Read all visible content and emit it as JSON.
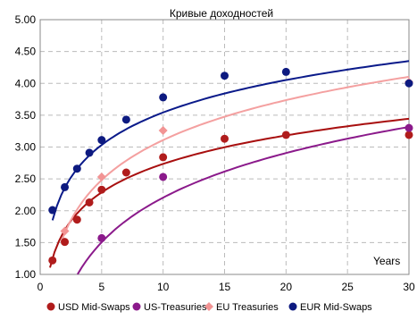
{
  "chart_data": {
    "type": "scatter",
    "title": "Кривые доходностей",
    "xlabel": "Years",
    "ylabel": "",
    "xlim": [
      0,
      30
    ],
    "ylim": [
      1.0,
      5.0
    ],
    "xticks": [
      0,
      5,
      10,
      15,
      20,
      25,
      30
    ],
    "yticks": [
      "1.00",
      "1.50",
      "2.00",
      "2.50",
      "3.00",
      "3.50",
      "4.00",
      "4.50",
      "5.00"
    ],
    "grid": true,
    "legend_position": "bottom",
    "series": [
      {
        "name": "USD Mid-Swaps",
        "color": "#b01c1c",
        "marker": "circle",
        "points": [
          [
            1,
            1.22
          ],
          [
            2,
            1.51
          ],
          [
            3,
            1.86
          ],
          [
            4,
            2.13
          ],
          [
            5,
            2.33
          ],
          [
            7,
            2.6
          ],
          [
            10,
            2.84
          ],
          [
            15,
            3.13
          ],
          [
            20,
            3.19
          ],
          [
            30,
            3.19
          ]
        ],
        "trend": {
          "type": "log",
          "a": 1.25,
          "b": 0.645,
          "x_from": 0.8,
          "x_to": 30
        },
        "trend_color": "#a80f0f"
      },
      {
        "name": "US-Treasuries",
        "color": "#8b1a8b",
        "marker": "circle",
        "points": [
          [
            5,
            1.57
          ],
          [
            10,
            2.53
          ],
          [
            30,
            3.3
          ]
        ],
        "trend": {
          "type": "log",
          "a": -0.12,
          "b": 1.01,
          "x_from": 2.7,
          "x_to": 30
        },
        "trend_color": "#8b1a8b"
      },
      {
        "name": "EU Treasuries",
        "color": "#f29494",
        "marker": "diamond",
        "points": [
          [
            2,
            1.68
          ],
          [
            5,
            2.53
          ],
          [
            10,
            3.26
          ],
          [
            30,
            4.02
          ]
        ],
        "trend": {
          "type": "log",
          "a": 1.025,
          "b": 0.905,
          "x_from": 1.7,
          "x_to": 30
        },
        "trend_color": "#f4a0a0"
      },
      {
        "name": "EUR Mid-Swaps",
        "color": "#0d1a80",
        "marker": "circle",
        "points": [
          [
            1,
            2.01
          ],
          [
            2,
            2.37
          ],
          [
            3,
            2.66
          ],
          [
            4,
            2.91
          ],
          [
            5,
            3.11
          ],
          [
            7,
            3.43
          ],
          [
            10,
            3.78
          ],
          [
            15,
            4.12
          ],
          [
            20,
            4.18
          ],
          [
            30,
            4.0
          ]
        ],
        "trend": {
          "type": "log",
          "a": 1.85,
          "b": 0.735,
          "x_from": 1,
          "x_to": 30
        },
        "trend_color": "#0a1a8a"
      }
    ]
  }
}
